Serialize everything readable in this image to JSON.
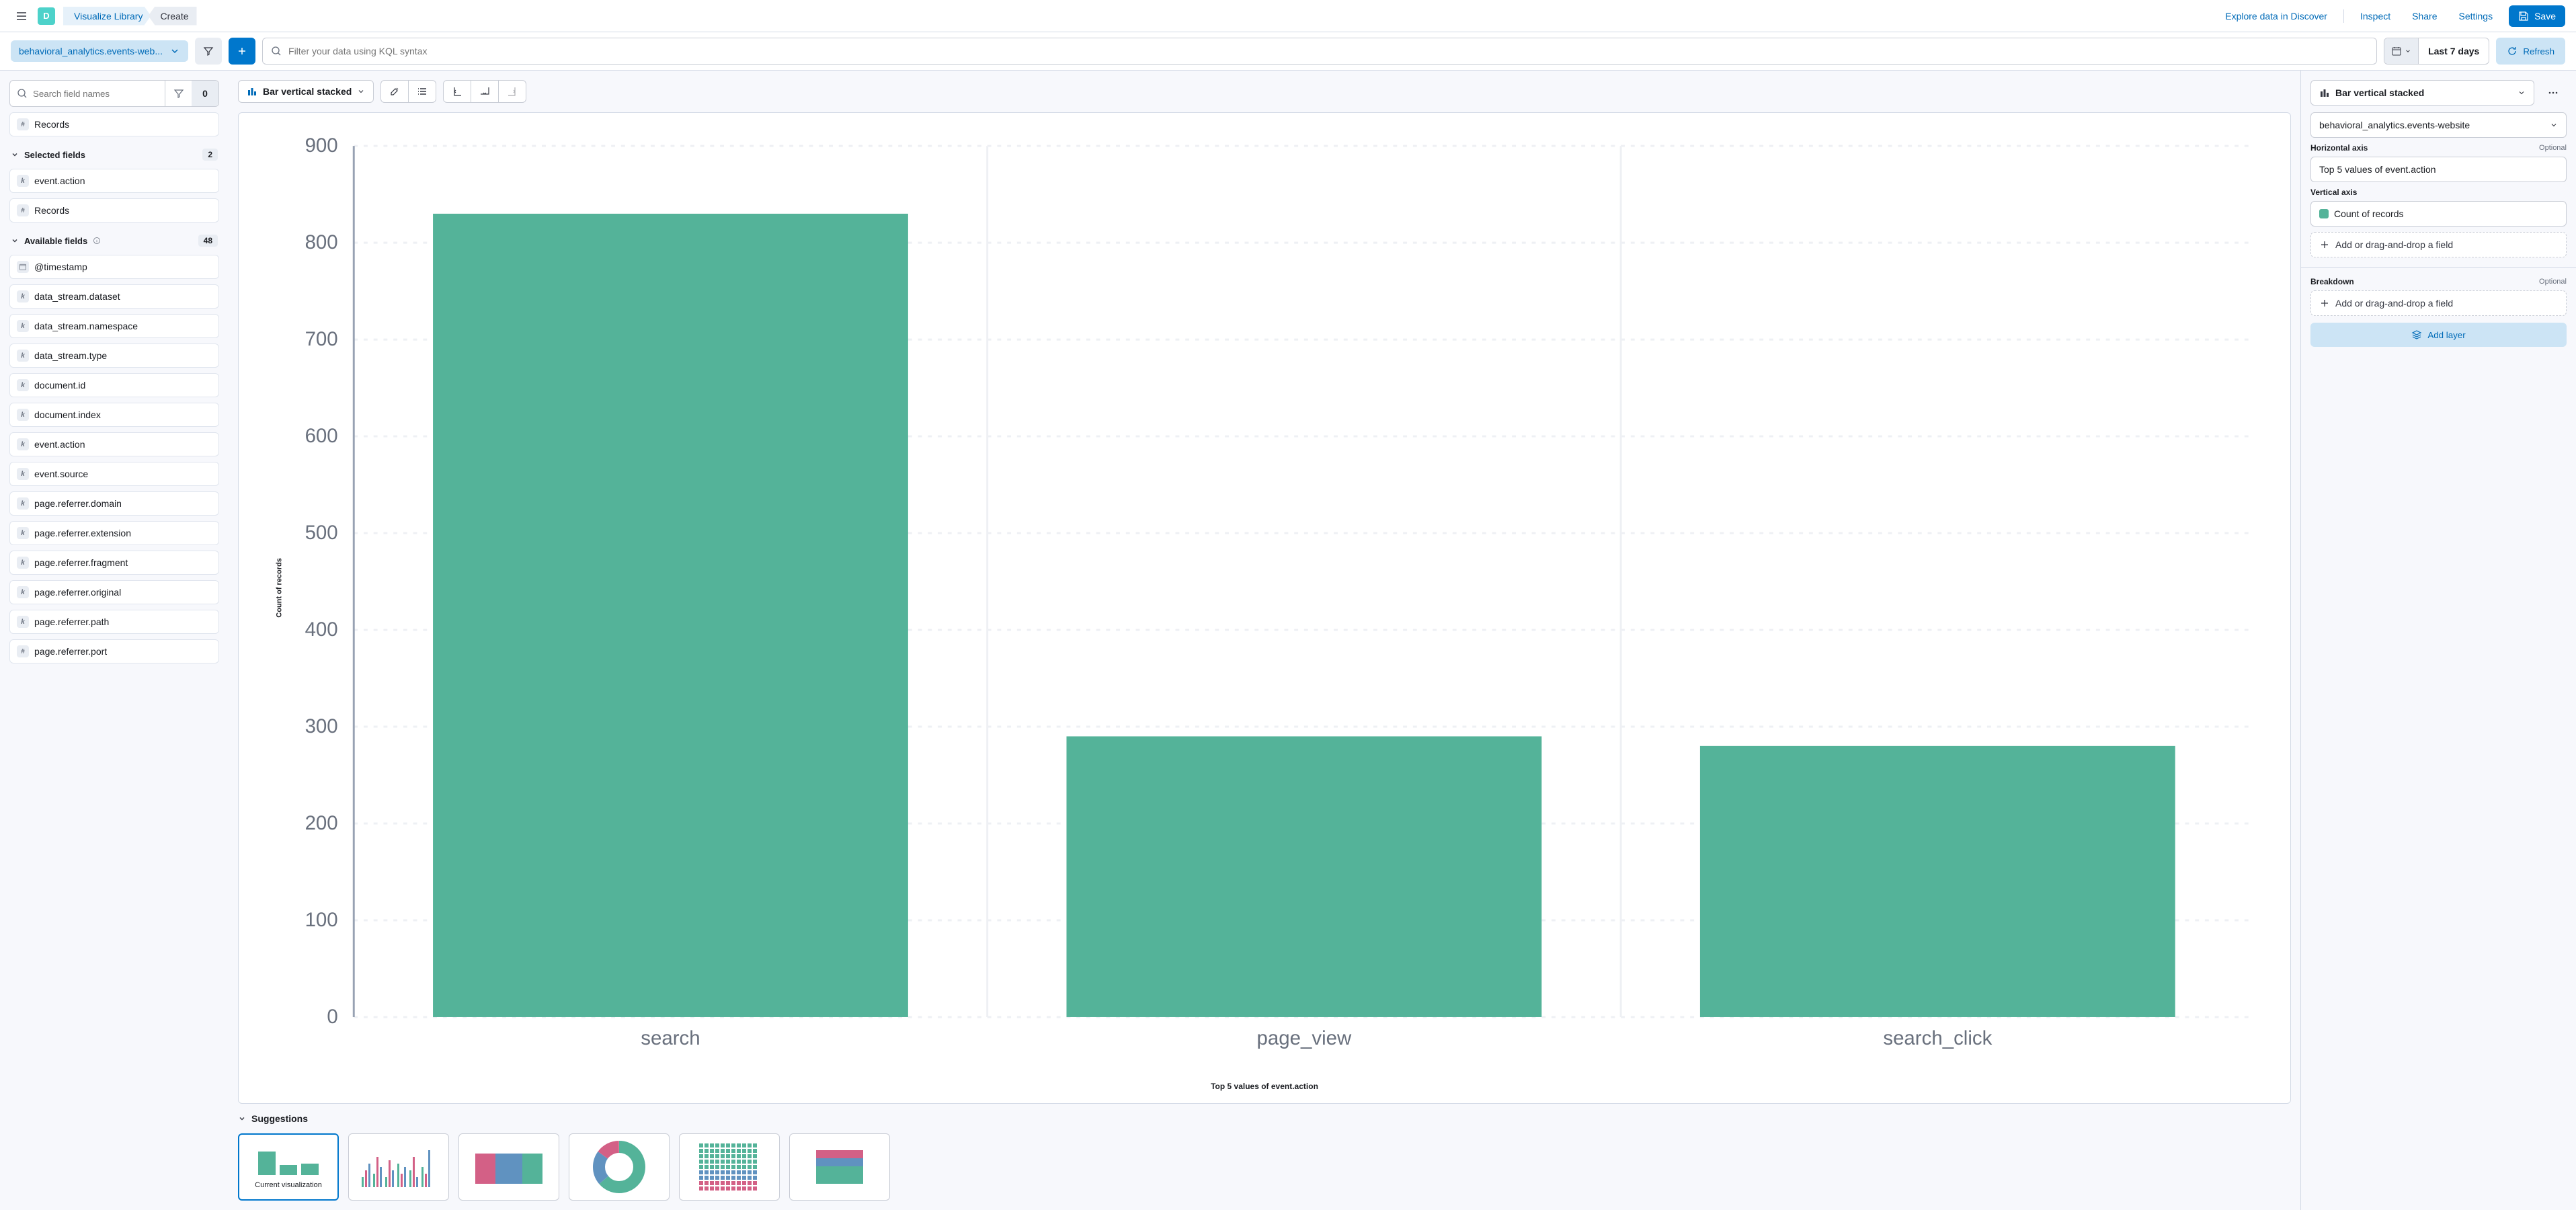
{
  "colors": {
    "primary": "#07c",
    "primary_light": "#cce4f5",
    "series": "#54b399",
    "grid": "#eef0f4",
    "axis": "#69707d",
    "bg": "#f7f8fc"
  },
  "topbar": {
    "avatar_letter": "D",
    "breadcrumbs": {
      "library": "Visualize Library",
      "current": "Create"
    },
    "links": {
      "explore": "Explore data in Discover",
      "inspect": "Inspect",
      "share": "Share",
      "settings": "Settings"
    },
    "save": "Save"
  },
  "querybar": {
    "dataview": "behavioral_analytics.events-web...",
    "kql_placeholder": "Filter your data using KQL syntax",
    "time_range": "Last 7 days",
    "refresh": "Refresh"
  },
  "fields_panel": {
    "search_placeholder": "Search field names",
    "filter_count": "0",
    "records_field": "Records",
    "selected_label": "Selected fields",
    "selected_count": "2",
    "selected": [
      {
        "t": "k",
        "n": "event.action"
      },
      {
        "t": "#",
        "n": "Records"
      }
    ],
    "available_label": "Available fields",
    "available_count": "48",
    "available": [
      {
        "t": "d",
        "n": "@timestamp"
      },
      {
        "t": "k",
        "n": "data_stream.dataset"
      },
      {
        "t": "k",
        "n": "data_stream.namespace"
      },
      {
        "t": "k",
        "n": "data_stream.type"
      },
      {
        "t": "k",
        "n": "document.id"
      },
      {
        "t": "k",
        "n": "document.index"
      },
      {
        "t": "k",
        "n": "event.action"
      },
      {
        "t": "k",
        "n": "event.source"
      },
      {
        "t": "k",
        "n": "page.referrer.domain"
      },
      {
        "t": "k",
        "n": "page.referrer.extension"
      },
      {
        "t": "k",
        "n": "page.referrer.fragment"
      },
      {
        "t": "k",
        "n": "page.referrer.original"
      },
      {
        "t": "k",
        "n": "page.referrer.path"
      },
      {
        "t": "#",
        "n": "page.referrer.port"
      }
    ]
  },
  "viz_toolbar": {
    "type_label": "Bar vertical stacked"
  },
  "chart": {
    "type": "bar",
    "ylabel": "Count of records",
    "xlabel": "Top 5 values of event.action",
    "ylim": [
      0,
      900
    ],
    "ytick_step": 100,
    "categories": [
      "search",
      "page_view",
      "search_click"
    ],
    "values": [
      830,
      290,
      280
    ],
    "bar_color": "#54b399",
    "grid_color": "#eef0f4",
    "background": "#ffffff",
    "bar_width": 0.75,
    "axis_fontsize": 10,
    "label_fontsize": 12
  },
  "suggestions": {
    "label": "Suggestions",
    "current_caption": "Current visualization"
  },
  "config": {
    "viz_type": "Bar vertical stacked",
    "index_pattern": "behavioral_analytics.events-website",
    "h_axis_label": "Horizontal axis",
    "h_axis_opt": "Optional",
    "h_axis_value": "Top 5 values of event.action",
    "v_axis_label": "Vertical axis",
    "v_axis_value": "Count of records",
    "add_field": "Add or drag-and-drop a field",
    "breakdown_label": "Breakdown",
    "breakdown_opt": "Optional",
    "add_layer": "Add layer"
  }
}
